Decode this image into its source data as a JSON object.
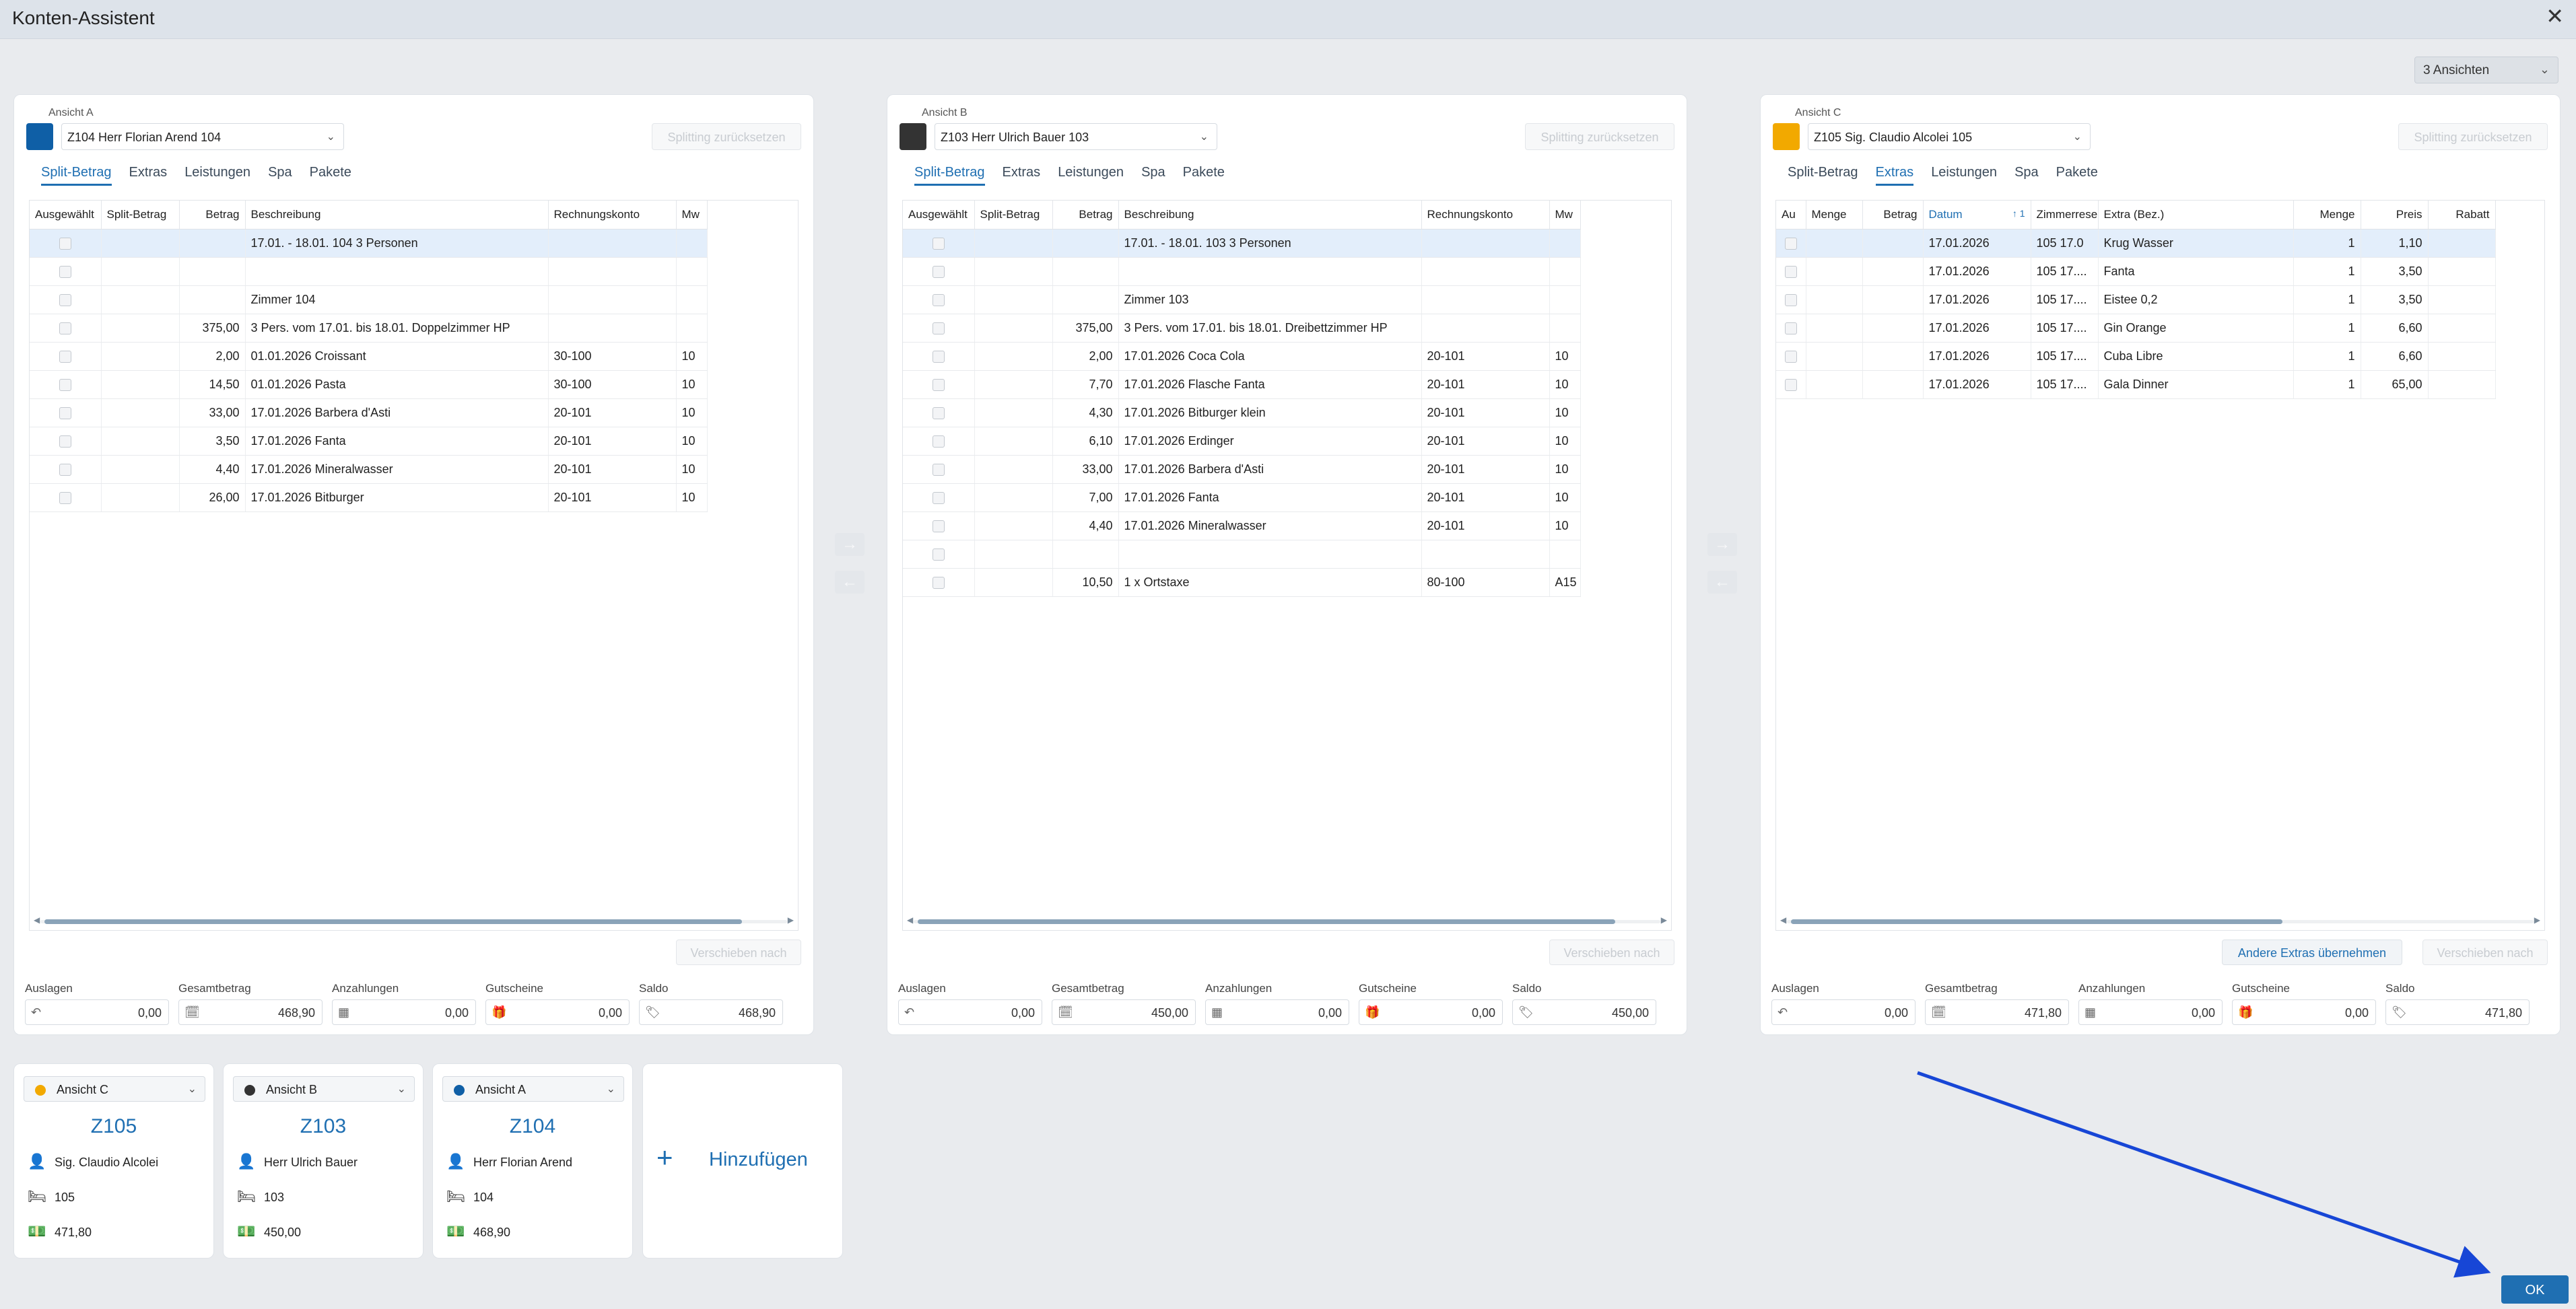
{
  "window": {
    "title": "Konten-Assistent",
    "close_icon": "close-icon"
  },
  "view_select": {
    "value": "3 Ansichten"
  },
  "common": {
    "reset_label": "Splitting zurücksetzen",
    "move_label": "Verschieben nach",
    "other_extras_label": "Andere Extras übernehmen"
  },
  "tabs": [
    "Split-Betrag",
    "Extras",
    "Leistungen",
    "Spa",
    "Pakete"
  ],
  "summary_labels": [
    "Auslagen",
    "Gesamtbetrag",
    "Anzahlungen",
    "Gutscheine",
    "Saldo"
  ],
  "panels": [
    {
      "label": "Ansicht A",
      "color": "#0f5fa6",
      "account": "Z104 Herr Florian Arend 104",
      "active_tab": 0,
      "columns": [
        "Ausgewählt",
        "Split-Betrag",
        "Betrag",
        "Beschreibung",
        "Rechnungskonto",
        "Mw"
      ],
      "rows": [
        [
          "",
          "",
          "17.01. - 18.01.  104  3 Personen",
          "",
          ""
        ],
        [
          "",
          "",
          "",
          "",
          ""
        ],
        [
          "",
          "",
          "Zimmer 104",
          "",
          ""
        ],
        [
          "",
          "375,00",
          "3 Pers. vom 17.01. bis 18.01. Doppelzimmer HP",
          "",
          ""
        ],
        [
          "",
          "2,00",
          "01.01.2026 Croissant",
          "30-100",
          "10"
        ],
        [
          "",
          "14,50",
          "01.01.2026 Pasta",
          "30-100",
          "10"
        ],
        [
          "",
          "33,00",
          "17.01.2026 Barbera d'Asti",
          "20-101",
          "10"
        ],
        [
          "",
          "3,50",
          "17.01.2026 Fanta",
          "20-101",
          "10"
        ],
        [
          "",
          "4,40",
          "17.01.2026 Mineralwasser",
          "20-101",
          "10"
        ],
        [
          "",
          "26,00",
          "17.01.2026 Bitburger",
          "20-101",
          "10"
        ]
      ],
      "summary": [
        "0,00",
        "468,90",
        "0,00",
        "0,00",
        "468,90"
      ]
    },
    {
      "label": "Ansicht B",
      "color": "#333333",
      "account": "Z103 Herr Ulrich Bauer 103",
      "active_tab": 0,
      "columns": [
        "Ausgewählt",
        "Split-Betrag",
        "Betrag",
        "Beschreibung",
        "Rechnungskonto",
        "Mw"
      ],
      "rows": [
        [
          "",
          "",
          "17.01. - 18.01.  103  3 Personen",
          "",
          ""
        ],
        [
          "",
          "",
          "",
          "",
          ""
        ],
        [
          "",
          "",
          "Zimmer 103",
          "",
          ""
        ],
        [
          "",
          "375,00",
          "3 Pers. vom 17.01. bis 18.01. Dreibettzimmer HP",
          "",
          ""
        ],
        [
          "",
          "2,00",
          "17.01.2026 Coca Cola",
          "20-101",
          "10"
        ],
        [
          "",
          "7,70",
          "17.01.2026 Flasche Fanta",
          "20-101",
          "10"
        ],
        [
          "",
          "4,30",
          "17.01.2026 Bitburger klein",
          "20-101",
          "10"
        ],
        [
          "",
          "6,10",
          "17.01.2026 Erdinger",
          "20-101",
          "10"
        ],
        [
          "",
          "33,00",
          "17.01.2026 Barbera d'Asti",
          "20-101",
          "10"
        ],
        [
          "",
          "7,00",
          "17.01.2026 Fanta",
          "20-101",
          "10"
        ],
        [
          "",
          "4,40",
          "17.01.2026 Mineralwasser",
          "20-101",
          "10"
        ],
        [
          "",
          "",
          "",
          "",
          ""
        ],
        [
          "",
          "10,50",
          "1 x Ortstaxe",
          "80-100",
          "A15"
        ]
      ],
      "summary": [
        "0,00",
        "450,00",
        "0,00",
        "0,00",
        "450,00"
      ]
    },
    {
      "label": "Ansicht C",
      "color": "#f2a900",
      "account": "Z105 Sig. Claudio Alcolei 105",
      "active_tab": 1,
      "columns": [
        "Au",
        "Menge",
        "Betrag",
        "Datum",
        "Zimmerrese",
        "Extra (Bez.)",
        "Menge",
        "Preis",
        "Rabatt"
      ],
      "sort_indicator": "↑ 1",
      "rows": [
        [
          "17.01.2026",
          "105  17.0",
          "Krug Wasser",
          "1",
          "1,10"
        ],
        [
          "17.01.2026",
          "105  17....",
          "Fanta",
          "1",
          "3,50"
        ],
        [
          "17.01.2026",
          "105  17....",
          "Eistee 0,2",
          "1",
          "3,50"
        ],
        [
          "17.01.2026",
          "105  17....",
          "Gin Orange",
          "1",
          "6,60"
        ],
        [
          "17.01.2026",
          "105  17....",
          "Cuba Libre",
          "1",
          "6,60"
        ],
        [
          "17.01.2026",
          "105  17....",
          "Gala Dinner",
          "1",
          "65,00"
        ]
      ],
      "summary": [
        "0,00",
        "471,80",
        "0,00",
        "0,00",
        "471,80"
      ]
    }
  ],
  "cards": [
    {
      "view": "Ansicht C",
      "color": "#f2a900",
      "room": "Z105",
      "guest": "Sig. Claudio Alcolei",
      "number": "105",
      "amount": "471,80"
    },
    {
      "view": "Ansicht B",
      "color": "#333333",
      "room": "Z103",
      "guest": "Herr Ulrich Bauer",
      "number": "103",
      "amount": "450,00"
    },
    {
      "view": "Ansicht A",
      "color": "#0f5fa6",
      "room": "Z104",
      "guest": "Herr Florian Arend",
      "number": "104",
      "amount": "468,90"
    }
  ],
  "add_card": {
    "label": "Hinzufügen"
  },
  "ok_button": {
    "label": "OK"
  }
}
